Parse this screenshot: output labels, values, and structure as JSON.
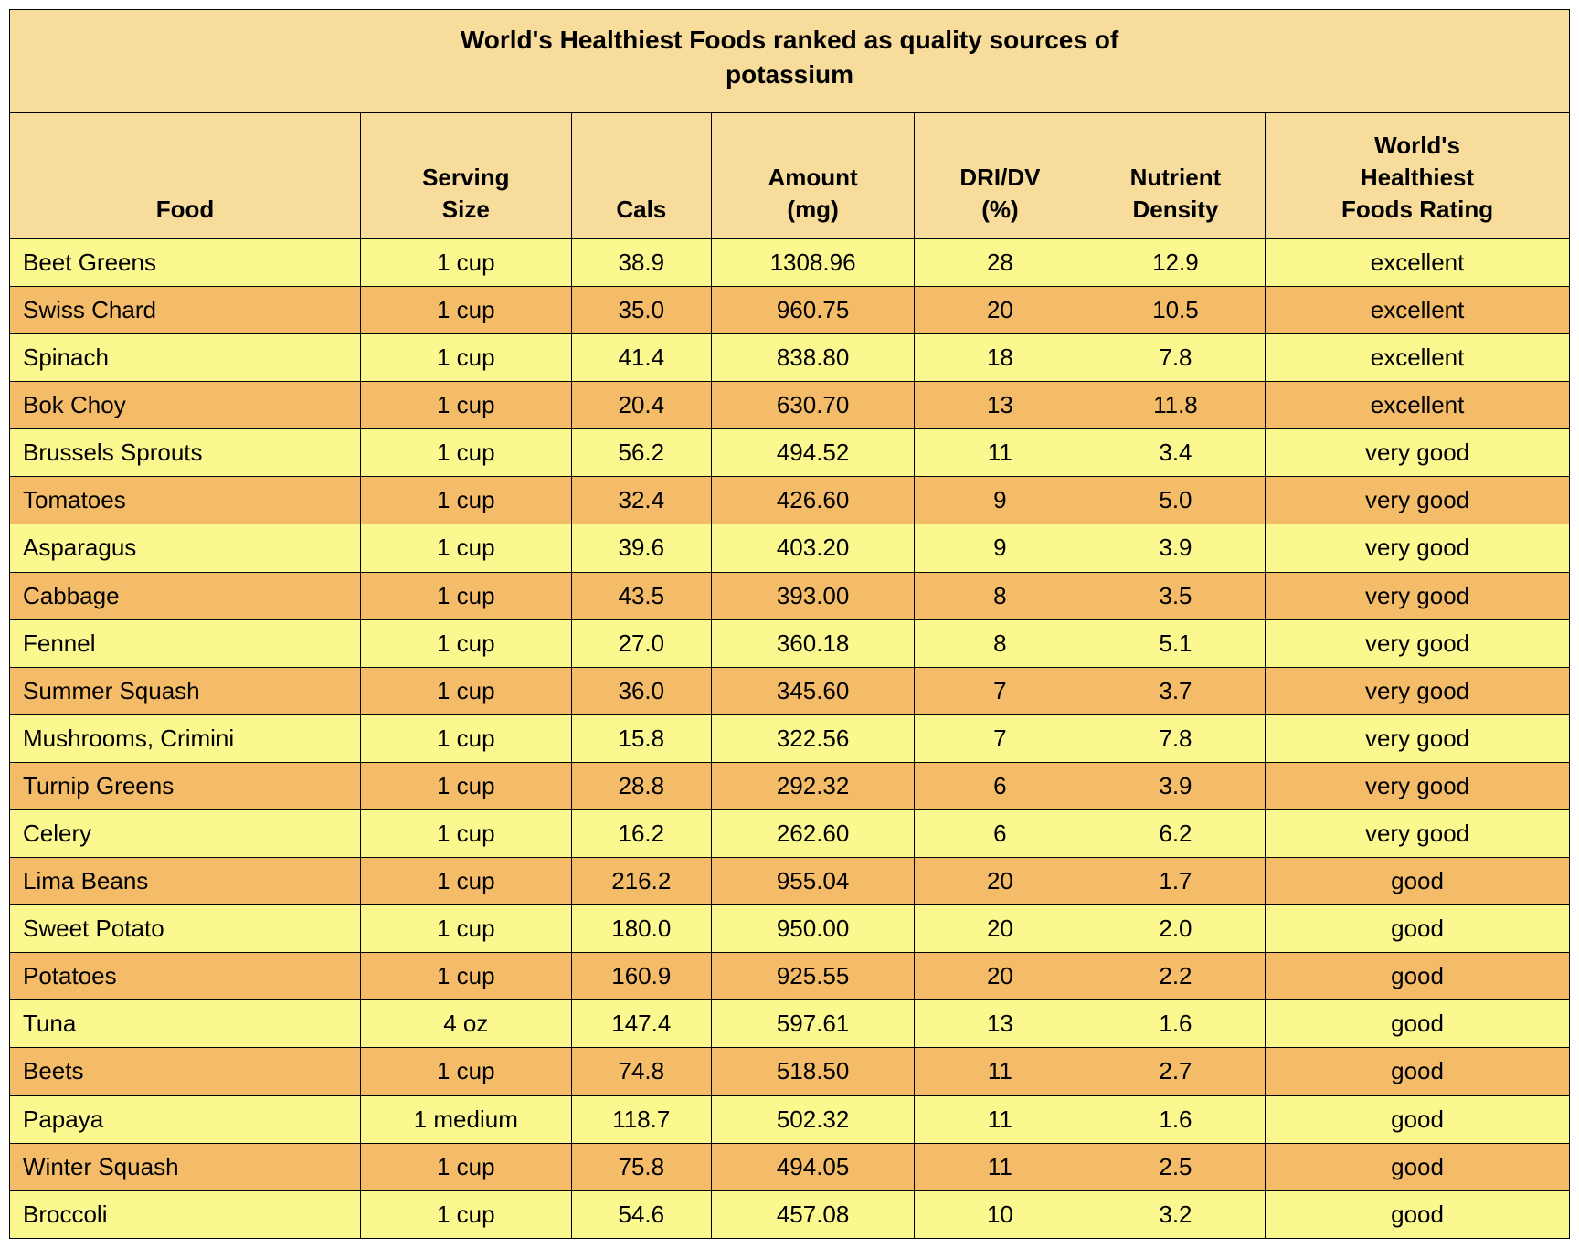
{
  "table": {
    "type": "table",
    "title": "World's Healthiest Foods ranked as quality sources of\npotassium",
    "background_color": "#ffffff",
    "border_color": "#000000",
    "header_bg": "#f8dc9c",
    "row_odd_bg": "#fbf890",
    "row_even_bg": "#f4bc68",
    "font_family": "Arial, Helvetica, sans-serif",
    "title_fontsize": 28,
    "cell_fontsize": 26,
    "columns": [
      {
        "key": "food",
        "label": "Food",
        "align": "left",
        "width_pct": 22.5
      },
      {
        "key": "serving",
        "label": "Serving\nSize",
        "align": "center",
        "width_pct": 13.5
      },
      {
        "key": "cals",
        "label": "Cals",
        "align": "center",
        "width_pct": 9.0
      },
      {
        "key": "amount",
        "label": "Amount\n(mg)",
        "align": "center",
        "width_pct": 13.0
      },
      {
        "key": "dri",
        "label": "DRI/DV\n(%)",
        "align": "center",
        "width_pct": 11.0
      },
      {
        "key": "density",
        "label": "Nutrient\nDensity",
        "align": "center",
        "width_pct": 11.5
      },
      {
        "key": "rating",
        "label": "World's\nHealthiest\nFoods Rating",
        "align": "center",
        "width_pct": 19.5
      }
    ],
    "rows": [
      {
        "food": "Beet Greens",
        "serving": "1 cup",
        "cals": "38.9",
        "amount": "1308.96",
        "dri": "28",
        "density": "12.9",
        "rating": "excellent"
      },
      {
        "food": "Swiss Chard",
        "serving": "1 cup",
        "cals": "35.0",
        "amount": "960.75",
        "dri": "20",
        "density": "10.5",
        "rating": "excellent"
      },
      {
        "food": "Spinach",
        "serving": "1 cup",
        "cals": "41.4",
        "amount": "838.80",
        "dri": "18",
        "density": "7.8",
        "rating": "excellent"
      },
      {
        "food": "Bok Choy",
        "serving": "1 cup",
        "cals": "20.4",
        "amount": "630.70",
        "dri": "13",
        "density": "11.8",
        "rating": "excellent"
      },
      {
        "food": "Brussels Sprouts",
        "serving": "1 cup",
        "cals": "56.2",
        "amount": "494.52",
        "dri": "11",
        "density": "3.4",
        "rating": "very good"
      },
      {
        "food": "Tomatoes",
        "serving": "1 cup",
        "cals": "32.4",
        "amount": "426.60",
        "dri": "9",
        "density": "5.0",
        "rating": "very good"
      },
      {
        "food": "Asparagus",
        "serving": "1 cup",
        "cals": "39.6",
        "amount": "403.20",
        "dri": "9",
        "density": "3.9",
        "rating": "very good"
      },
      {
        "food": "Cabbage",
        "serving": "1 cup",
        "cals": "43.5",
        "amount": "393.00",
        "dri": "8",
        "density": "3.5",
        "rating": "very good"
      },
      {
        "food": "Fennel",
        "serving": "1 cup",
        "cals": "27.0",
        "amount": "360.18",
        "dri": "8",
        "density": "5.1",
        "rating": "very good"
      },
      {
        "food": "Summer Squash",
        "serving": "1 cup",
        "cals": "36.0",
        "amount": "345.60",
        "dri": "7",
        "density": "3.7",
        "rating": "very good"
      },
      {
        "food": "Mushrooms, Crimini",
        "serving": "1 cup",
        "cals": "15.8",
        "amount": "322.56",
        "dri": "7",
        "density": "7.8",
        "rating": "very good"
      },
      {
        "food": "Turnip Greens",
        "serving": "1 cup",
        "cals": "28.8",
        "amount": "292.32",
        "dri": "6",
        "density": "3.9",
        "rating": "very good"
      },
      {
        "food": "Celery",
        "serving": "1 cup",
        "cals": "16.2",
        "amount": "262.60",
        "dri": "6",
        "density": "6.2",
        "rating": "very good"
      },
      {
        "food": "Lima Beans",
        "serving": "1 cup",
        "cals": "216.2",
        "amount": "955.04",
        "dri": "20",
        "density": "1.7",
        "rating": "good"
      },
      {
        "food": "Sweet Potato",
        "serving": "1 cup",
        "cals": "180.0",
        "amount": "950.00",
        "dri": "20",
        "density": "2.0",
        "rating": "good"
      },
      {
        "food": "Potatoes",
        "serving": "1 cup",
        "cals": "160.9",
        "amount": "925.55",
        "dri": "20",
        "density": "2.2",
        "rating": "good"
      },
      {
        "food": "Tuna",
        "serving": "4 oz",
        "cals": "147.4",
        "amount": "597.61",
        "dri": "13",
        "density": "1.6",
        "rating": "good"
      },
      {
        "food": "Beets",
        "serving": "1 cup",
        "cals": "74.8",
        "amount": "518.50",
        "dri": "11",
        "density": "2.7",
        "rating": "good"
      },
      {
        "food": "Papaya",
        "serving": "1 medium",
        "cals": "118.7",
        "amount": "502.32",
        "dri": "11",
        "density": "1.6",
        "rating": "good"
      },
      {
        "food": "Winter Squash",
        "serving": "1 cup",
        "cals": "75.8",
        "amount": "494.05",
        "dri": "11",
        "density": "2.5",
        "rating": "good"
      },
      {
        "food": "Broccoli",
        "serving": "1 cup",
        "cals": "54.6",
        "amount": "457.08",
        "dri": "10",
        "density": "3.2",
        "rating": "good"
      }
    ]
  }
}
